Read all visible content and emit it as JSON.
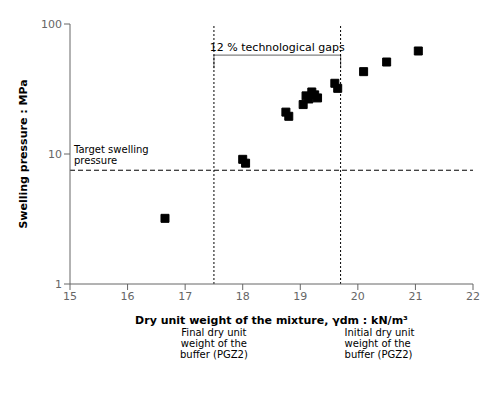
{
  "chart_data": {
    "type": "scatter",
    "x": [
      16.65,
      18.0,
      18.05,
      18.75,
      18.8,
      19.05,
      19.1,
      19.15,
      19.2,
      19.25,
      19.3,
      19.6,
      19.65,
      20.1,
      20.5,
      21.05
    ],
    "values": [
      3.2,
      9.1,
      8.5,
      21.0,
      19.5,
      24.0,
      28.0,
      26.5,
      30.0,
      28.5,
      27.0,
      35.0,
      32.0,
      43.0,
      51.0,
      62.0
    ],
    "xlim": [
      15,
      22
    ],
    "ylim": [
      1,
      100
    ],
    "xticks": [
      15,
      16,
      17,
      18,
      19,
      20,
      21,
      22
    ],
    "yticks": [
      1,
      10,
      100
    ],
    "log": "y",
    "grid": false,
    "marker": "square",
    "color": "black",
    "xlabel": "Dry unit weight of the mixture, γdm : kN/m³",
    "ylabel": "Swelling pressure : MPa",
    "vlines": [
      17.5,
      19.7
    ],
    "hlines": [
      7.5
    ],
    "hline_label": "Target swelling\npressure",
    "bracket_label": "12 % technological gaps",
    "vline_labels": [
      "Final dry unit\nweight of the\nbuffer (PGZ2)",
      "Initial dry unit\nweight of the\nbuffer (PGZ2)"
    ]
  }
}
